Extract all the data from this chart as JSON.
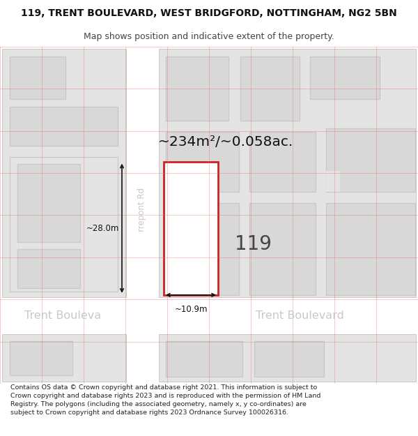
{
  "title_line1": "119, TRENT BOULEVARD, WEST BRIDGFORD, NOTTINGHAM, NG2 5BN",
  "title_line2": "Map shows position and indicative extent of the property.",
  "footer_text": "Contains OS data © Crown copyright and database right 2021. This information is subject to Crown copyright and database rights 2023 and is reproduced with the permission of HM Land Registry. The polygons (including the associated geometry, namely x, y co-ordinates) are subject to Crown copyright and database rights 2023 Ordnance Survey 100026316.",
  "area_text": "~234m²/~0.058ac.",
  "number_text": "119",
  "width_label": "~10.9m",
  "height_label": "~28.0m",
  "bg_color": "#ffffff",
  "map_bg": "#efefef",
  "block_fill_outer": "#e4e4e4",
  "block_fill_inner": "#d8d8d8",
  "block_edge": "#c8c8c8",
  "road_fill": "#ffffff",
  "highlight_fill": "#ffffff",
  "highlight_stroke": "#cc2222",
  "grid_color": "#e07060",
  "road_text": "#c8c8c8",
  "dim_color": "#111111",
  "number_color": "#444444",
  "area_color": "#111111",
  "title1_color": "#111111",
  "title2_color": "#444444",
  "footer_color": "#222222"
}
